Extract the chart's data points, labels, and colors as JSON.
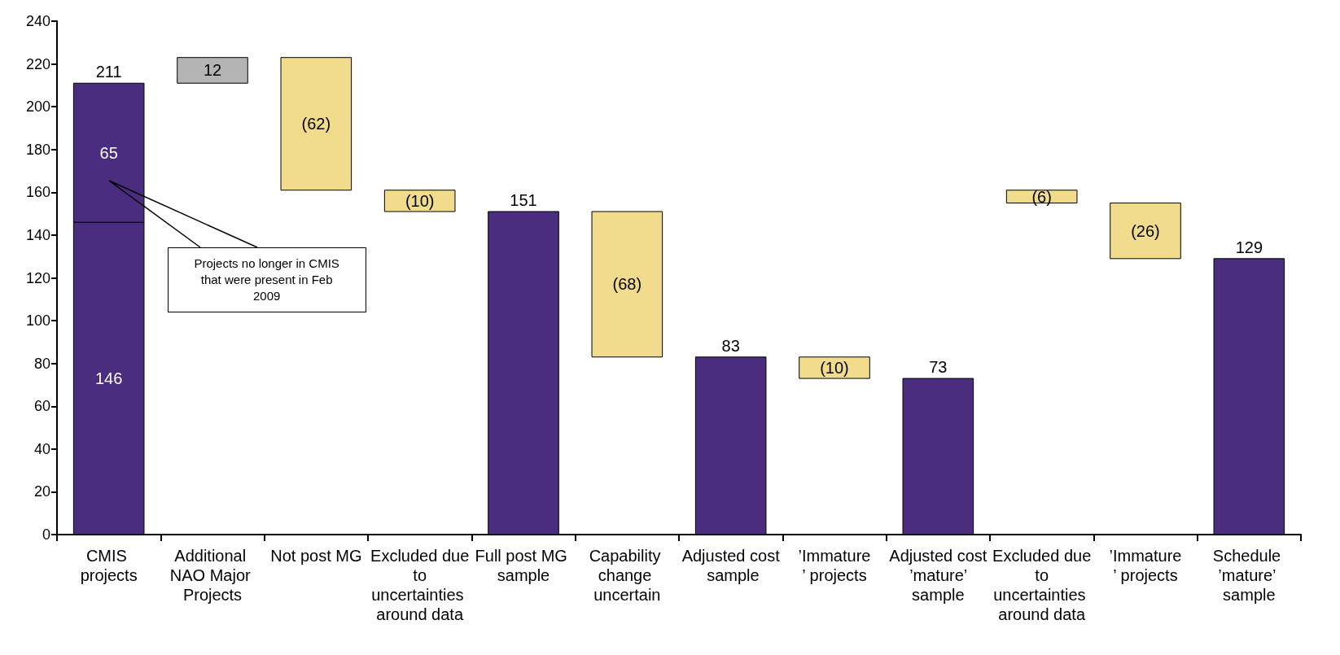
{
  "chart_data": {
    "type": "bar",
    "stacked": true,
    "categories": [
      "CMIS projects",
      "Additional NAO Major Projects",
      "Not post MG",
      "Excluded due to uncertainties around data",
      "Full post MG sample",
      "Capability change uncertain",
      "Adjusted cost sample",
      "’Immature’ projects",
      "Adjusted cost ’mature’ sample",
      "Excluded due to uncertainties around data",
      "’Immature’ projects",
      "Schedule ’mature’ sample"
    ],
    "series": [
      {
        "base": [
          0,
          211,
          223,
          161,
          0,
          151,
          0,
          83,
          0,
          161,
          155,
          0
        ],
        "values": [
          146,
          12,
          -62,
          -10,
          151,
          -68,
          83,
          -10,
          73,
          -6,
          -26,
          129
        ],
        "colors": [
          "#4b2d7f",
          "#b4b4b4",
          "#f0dc8c",
          "#f0dc8c",
          "#4b2d7f",
          "#f0dc8c",
          "#4b2d7f",
          "#f0dc8c",
          "#4b2d7f",
          "#f0dc8c",
          "#f0dc8c",
          "#4b2d7f"
        ],
        "value_labels": [
          "146",
          "12",
          "(62)",
          "(10)",
          "151",
          "(68)",
          "83",
          "(10)",
          "73",
          "(6)",
          "(26)",
          "129"
        ]
      },
      {
        "values": [
          65,
          null,
          null,
          null,
          null,
          null,
          null,
          null,
          null,
          null,
          null,
          null
        ],
        "color": "#4b2d7f",
        "value_labels": [
          "65",
          null,
          null,
          null,
          null,
          null,
          null,
          null,
          null,
          null,
          null,
          null
        ]
      }
    ],
    "totals": [
      "211",
      null,
      null,
      null,
      null,
      null,
      null,
      null,
      null,
      null,
      null,
      null
    ],
    "ylim": [
      0,
      240
    ],
    "yticks": [
      0,
      20,
      40,
      60,
      80,
      100,
      120,
      140,
      160,
      180,
      200,
      220,
      240
    ],
    "grid": false,
    "annotations": [
      "Projects no longer in CMIS that were present in Feb 2009"
    ]
  }
}
